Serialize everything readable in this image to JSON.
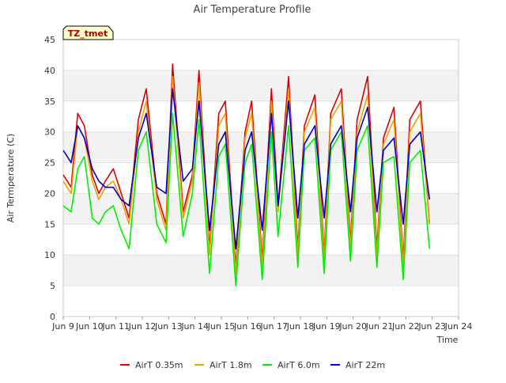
{
  "chart_data": {
    "type": "line",
    "title": "Air Temperature Profile",
    "xlabel": "Time",
    "ylabel": "Air Termperature (C)",
    "badge": "TZ_tmet",
    "ylim": [
      0,
      45
    ],
    "yticks": [
      0,
      5,
      10,
      15,
      20,
      25,
      30,
      35,
      40,
      45
    ],
    "xlim": [
      9,
      24
    ],
    "xticks": [
      {
        "v": 9,
        "label": "Jun 9"
      },
      {
        "v": 10,
        "label": "Jun 10"
      },
      {
        "v": 11,
        "label": "Jun 11"
      },
      {
        "v": 12,
        "label": "Jun 12"
      },
      {
        "v": 13,
        "label": "Jun 13"
      },
      {
        "v": 14,
        "label": "Jun 14"
      },
      {
        "v": 15,
        "label": "Jun 15"
      },
      {
        "v": 16,
        "label": "Jun 16"
      },
      {
        "v": 17,
        "label": "Jun 17"
      },
      {
        "v": 18,
        "label": "Jun 18"
      },
      {
        "v": 19,
        "label": "Jun 19"
      },
      {
        "v": 20,
        "label": "Jun 20"
      },
      {
        "v": 21,
        "label": "Jun 21"
      },
      {
        "v": 22,
        "label": "Jun 22"
      },
      {
        "v": 23,
        "label": "Jun 23"
      },
      {
        "v": 24,
        "label": "Jun 24"
      }
    ],
    "grid": true,
    "legend_position": "bottom",
    "series": [
      {
        "name": "AirT 0.35m",
        "color": "#dd0000",
        "x": [
          9.0,
          9.3,
          9.55,
          9.8,
          10.1,
          10.35,
          10.6,
          10.9,
          11.2,
          11.5,
          11.85,
          12.15,
          12.55,
          12.9,
          13.15,
          13.55,
          13.9,
          14.15,
          14.55,
          14.9,
          15.15,
          15.55,
          15.9,
          16.15,
          16.55,
          16.9,
          17.15,
          17.55,
          17.9,
          18.15,
          18.55,
          18.9,
          19.15,
          19.55,
          19.9,
          20.15,
          20.55,
          20.9,
          21.15,
          21.55,
          21.9,
          22.15,
          22.55,
          22.9
        ],
        "y": [
          23,
          21,
          33,
          31,
          23,
          20,
          22,
          24,
          20,
          16,
          32,
          37,
          20,
          15,
          41,
          17,
          23,
          40,
          11,
          33,
          35,
          8,
          30,
          35,
          9,
          37,
          18,
          39,
          11,
          31,
          36,
          10,
          33,
          37,
          12,
          32,
          39,
          11,
          29,
          34,
          9,
          32,
          35,
          15
        ]
      },
      {
        "name": "AirT 1.8m",
        "color": "#f0a000",
        "x": [
          9.0,
          9.3,
          9.55,
          9.8,
          10.1,
          10.35,
          10.6,
          10.9,
          11.2,
          11.5,
          11.85,
          12.15,
          12.55,
          12.9,
          13.15,
          13.55,
          13.9,
          14.15,
          14.55,
          14.9,
          15.15,
          15.55,
          15.9,
          16.15,
          16.55,
          16.9,
          17.15,
          17.55,
          17.9,
          18.15,
          18.55,
          18.9,
          19.15,
          19.55,
          19.9,
          20.15,
          20.55,
          20.9,
          21.15,
          21.55,
          21.9,
          22.15,
          22.55,
          22.9
        ],
        "y": [
          22,
          20,
          31,
          29,
          22,
          19,
          21,
          22,
          19,
          15,
          30,
          35,
          19,
          14,
          39,
          16,
          22,
          38,
          10,
          31,
          33,
          7,
          29,
          33,
          8,
          35,
          17,
          37,
          10,
          30,
          34,
          9,
          32,
          35,
          11,
          30,
          36,
          10,
          28,
          32,
          8,
          30,
          33,
          15
        ]
      },
      {
        "name": "AirT 6.0m",
        "color": "#00ee00",
        "x": [
          9.0,
          9.3,
          9.55,
          9.8,
          10.1,
          10.35,
          10.6,
          10.9,
          11.2,
          11.5,
          11.85,
          12.15,
          12.55,
          12.9,
          13.15,
          13.55,
          13.9,
          14.15,
          14.55,
          14.9,
          15.15,
          15.55,
          15.9,
          16.15,
          16.55,
          16.9,
          17.15,
          17.55,
          17.9,
          18.15,
          18.55,
          18.9,
          19.15,
          19.55,
          19.9,
          20.15,
          20.55,
          20.9,
          21.15,
          21.55,
          21.9,
          22.15,
          22.55,
          22.9
        ],
        "y": [
          18,
          17,
          24,
          26,
          16,
          15,
          17,
          18,
          14,
          11,
          27,
          30,
          15,
          12,
          33,
          13,
          20,
          32,
          7,
          26,
          28,
          5,
          25,
          28,
          6,
          30,
          13,
          31,
          8,
          27,
          29,
          7,
          27,
          30,
          9,
          27,
          31,
          8,
          25,
          26,
          6,
          25,
          27,
          11
        ]
      },
      {
        "name": "AirT 22m",
        "color": "#0000cc",
        "x": [
          9.0,
          9.3,
          9.55,
          9.8,
          10.1,
          10.35,
          10.6,
          10.9,
          11.2,
          11.5,
          11.85,
          12.15,
          12.55,
          12.9,
          13.15,
          13.55,
          13.9,
          14.15,
          14.55,
          14.9,
          15.15,
          15.55,
          15.9,
          16.15,
          16.55,
          16.9,
          17.15,
          17.55,
          17.9,
          18.15,
          18.55,
          18.9,
          19.15,
          19.55,
          19.9,
          20.15,
          20.55,
          20.9,
          21.15,
          21.55,
          21.9,
          22.15,
          22.55,
          22.9
        ],
        "y": [
          27,
          25,
          31,
          29,
          24,
          22,
          21,
          21,
          19,
          18,
          29,
          33,
          21,
          20,
          37,
          22,
          24,
          35,
          14,
          28,
          30,
          11,
          27,
          30,
          14,
          33,
          18,
          35,
          16,
          28,
          31,
          16,
          28,
          31,
          17,
          29,
          34,
          17,
          27,
          29,
          15,
          28,
          30,
          19
        ]
      }
    ]
  }
}
